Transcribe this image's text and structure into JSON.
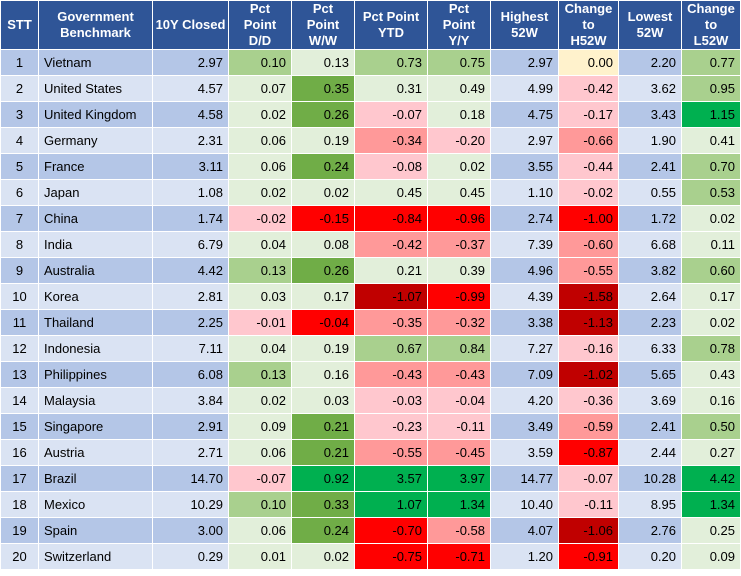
{
  "table": {
    "headers": [
      {
        "l1": "STT",
        "l2": ""
      },
      {
        "l1": "Government",
        "l2": "Benchmark"
      },
      {
        "l1": "10Y Closed",
        "l2": ""
      },
      {
        "l1": "Pct",
        "l2": "Point",
        "l3": "D/D"
      },
      {
        "l1": "Pct",
        "l2": "Point",
        "l3": "W/W"
      },
      {
        "l1": "Pct Point",
        "l2": "YTD"
      },
      {
        "l1": "Pct",
        "l2": "Point",
        "l3": "Y/Y"
      },
      {
        "l1": "Highest",
        "l2": "52W"
      },
      {
        "l1": "Change",
        "l2": "to",
        "l3": "H52W"
      },
      {
        "l1": "Lowest",
        "l2": "52W"
      },
      {
        "l1": "Change",
        "l2": "to",
        "l3": "L52W"
      }
    ],
    "rows": [
      {
        "stt": "1",
        "name": "Vietnam",
        "closed": "2.97",
        "dd": "0.10",
        "ww": "0.13",
        "ytd": "0.73",
        "yy": "0.75",
        "high": "2.97",
        "ch": "0.00",
        "low": "2.20",
        "cl": "0.77"
      },
      {
        "stt": "2",
        "name": "United States",
        "closed": "4.57",
        "dd": "0.07",
        "ww": "0.35",
        "ytd": "0.31",
        "yy": "0.49",
        "high": "4.99",
        "ch": "-0.42",
        "low": "3.62",
        "cl": "0.95"
      },
      {
        "stt": "3",
        "name": "United Kingdom",
        "closed": "4.58",
        "dd": "0.02",
        "ww": "0.26",
        "ytd": "-0.07",
        "yy": "0.18",
        "high": "4.75",
        "ch": "-0.17",
        "low": "3.43",
        "cl": "1.15"
      },
      {
        "stt": "4",
        "name": "Germany",
        "closed": "2.31",
        "dd": "0.06",
        "ww": "0.19",
        "ytd": "-0.34",
        "yy": "-0.20",
        "high": "2.97",
        "ch": "-0.66",
        "low": "1.90",
        "cl": "0.41"
      },
      {
        "stt": "5",
        "name": "France",
        "closed": "3.11",
        "dd": "0.06",
        "ww": "0.24",
        "ytd": "-0.08",
        "yy": "0.02",
        "high": "3.55",
        "ch": "-0.44",
        "low": "2.41",
        "cl": "0.70"
      },
      {
        "stt": "6",
        "name": "Japan",
        "closed": "1.08",
        "dd": "0.02",
        "ww": "0.02",
        "ytd": "0.45",
        "yy": "0.45",
        "high": "1.10",
        "ch": "-0.02",
        "low": "0.55",
        "cl": "0.53"
      },
      {
        "stt": "7",
        "name": "China",
        "closed": "1.74",
        "dd": "-0.02",
        "ww": "-0.15",
        "ytd": "-0.84",
        "yy": "-0.96",
        "high": "2.74",
        "ch": "-1.00",
        "low": "1.72",
        "cl": "0.02"
      },
      {
        "stt": "8",
        "name": "India",
        "closed": "6.79",
        "dd": "0.04",
        "ww": "0.08",
        "ytd": "-0.42",
        "yy": "-0.37",
        "high": "7.39",
        "ch": "-0.60",
        "low": "6.68",
        "cl": "0.11"
      },
      {
        "stt": "9",
        "name": "Australia",
        "closed": "4.42",
        "dd": "0.13",
        "ww": "0.26",
        "ytd": "0.21",
        "yy": "0.39",
        "high": "4.96",
        "ch": "-0.55",
        "low": "3.82",
        "cl": "0.60"
      },
      {
        "stt": "10",
        "name": "Korea",
        "closed": "2.81",
        "dd": "0.03",
        "ww": "0.17",
        "ytd": "-1.07",
        "yy": "-0.99",
        "high": "4.39",
        "ch": "-1.58",
        "low": "2.64",
        "cl": "0.17"
      },
      {
        "stt": "11",
        "name": "Thailand",
        "closed": "2.25",
        "dd": "-0.01",
        "ww": "-0.04",
        "ytd": "-0.35",
        "yy": "-0.32",
        "high": "3.38",
        "ch": "-1.13",
        "low": "2.23",
        "cl": "0.02"
      },
      {
        "stt": "12",
        "name": "Indonesia",
        "closed": "7.11",
        "dd": "0.04",
        "ww": "0.19",
        "ytd": "0.67",
        "yy": "0.84",
        "high": "7.27",
        "ch": "-0.16",
        "low": "6.33",
        "cl": "0.78"
      },
      {
        "stt": "13",
        "name": "Philippines",
        "closed": "6.08",
        "dd": "0.13",
        "ww": "0.16",
        "ytd": "-0.43",
        "yy": "-0.43",
        "high": "7.09",
        "ch": "-1.02",
        "low": "5.65",
        "cl": "0.43"
      },
      {
        "stt": "14",
        "name": "Malaysia",
        "closed": "3.84",
        "dd": "0.02",
        "ww": "0.03",
        "ytd": "-0.03",
        "yy": "-0.04",
        "high": "4.20",
        "ch": "-0.36",
        "low": "3.69",
        "cl": "0.16"
      },
      {
        "stt": "15",
        "name": "Singapore",
        "closed": "2.91",
        "dd": "0.09",
        "ww": "0.21",
        "ytd": "-0.23",
        "yy": "-0.11",
        "high": "3.49",
        "ch": "-0.59",
        "low": "2.41",
        "cl": "0.50"
      },
      {
        "stt": "16",
        "name": "Austria",
        "closed": "2.71",
        "dd": "0.06",
        "ww": "0.21",
        "ytd": "-0.55",
        "yy": "-0.45",
        "high": "3.59",
        "ch": "-0.87",
        "low": "2.44",
        "cl": "0.27"
      },
      {
        "stt": "17",
        "name": "Brazil",
        "closed": "14.70",
        "dd": "-0.07",
        "ww": "0.92",
        "ytd": "3.57",
        "yy": "3.97",
        "high": "14.77",
        "ch": "-0.07",
        "low": "10.28",
        "cl": "4.42"
      },
      {
        "stt": "18",
        "name": "Mexico",
        "closed": "10.29",
        "dd": "0.10",
        "ww": "0.33",
        "ytd": "1.07",
        "yy": "1.34",
        "high": "10.40",
        "ch": "-0.11",
        "low": "8.95",
        "cl": "1.34"
      },
      {
        "stt": "19",
        "name": "Spain",
        "closed": "3.00",
        "dd": "0.06",
        "ww": "0.24",
        "ytd": "-0.70",
        "yy": "-0.58",
        "high": "4.07",
        "ch": "-1.06",
        "low": "2.76",
        "cl": "0.25"
      },
      {
        "stt": "20",
        "name": "Switzerland",
        "closed": "0.29",
        "dd": "0.01",
        "ww": "0.02",
        "ytd": "-0.75",
        "yy": "-0.71",
        "high": "1.20",
        "ch": "-0.91",
        "low": "0.20",
        "cl": "0.09"
      }
    ]
  },
  "colors": {
    "header_bg": "#2f5597",
    "header_text": "#ffffff",
    "row_odd": "#b4c6e7",
    "row_even": "#dae3f3",
    "neutral_light_green": "#e2efda",
    "mid_green": "#a9d08e",
    "strong_green": "#70ad47",
    "bright_green": "#00b050",
    "light_red": "#ffc7ce",
    "mid_red": "#ff9999",
    "bright_red": "#ff0000",
    "dark_red": "#c00000",
    "zero_yellow": "#fff2cc"
  }
}
